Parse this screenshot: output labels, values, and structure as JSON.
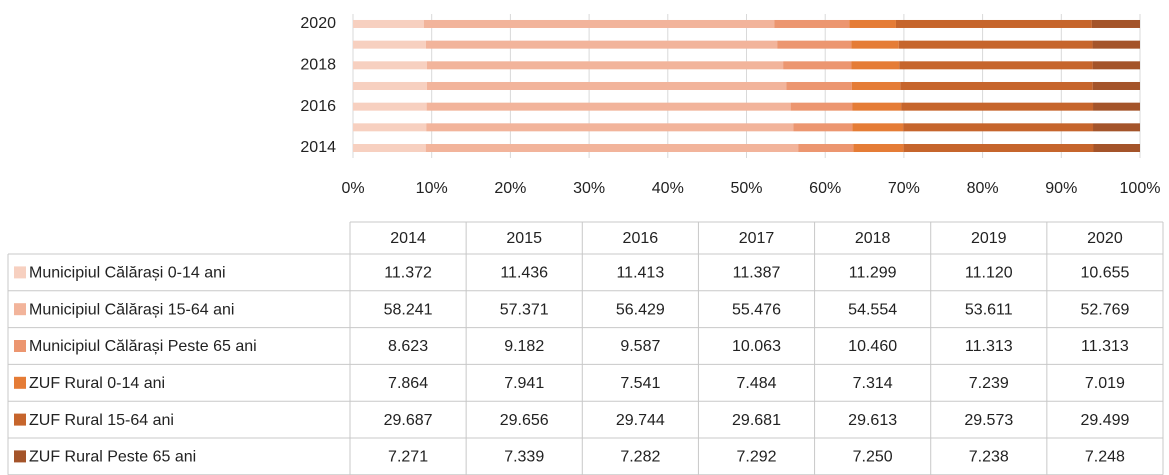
{
  "chart_data": {
    "type": "bar",
    "orientation": "horizontal",
    "stacking": "percent",
    "categories": [
      "2014",
      "2015",
      "2016",
      "2017",
      "2018",
      "2019",
      "2020"
    ],
    "series": [
      {
        "name": "Municipiul Călărași 0-14 ani",
        "color": "#f7d0c0",
        "values": [
          11372,
          11436,
          11413,
          11387,
          11299,
          11120,
          10655
        ],
        "value_labels": [
          "11.372",
          "11.436",
          "11.413",
          "11.387",
          "11.299",
          "11.120",
          "10.655"
        ]
      },
      {
        "name": "Municipiul Călărași 15-64 ani",
        "color": "#f2b49b",
        "values": [
          58241,
          57371,
          56429,
          55476,
          54554,
          53611,
          52769
        ],
        "value_labels": [
          "58.241",
          "57.371",
          "56.429",
          "55.476",
          "54.554",
          "53.611",
          "52.769"
        ]
      },
      {
        "name": "Municipiul Călărași Peste 65 ani",
        "color": "#ec9670",
        "values": [
          8623,
          9182,
          9587,
          10063,
          10460,
          11313,
          11313
        ],
        "value_labels": [
          "8.623",
          "9.182",
          "9.587",
          "10.063",
          "10.460",
          "11.313",
          "11.313"
        ]
      },
      {
        "name": "ZUF Rural 0-14 ani",
        "color": "#e57c36",
        "values": [
          7864,
          7941,
          7541,
          7484,
          7314,
          7239,
          7019
        ],
        "value_labels": [
          "7.864",
          "7.941",
          "7.541",
          "7.484",
          "7.314",
          "7.239",
          "7.019"
        ]
      },
      {
        "name": "ZUF Rural 15-64 ani",
        "color": "#c6652c",
        "values": [
          29687,
          29656,
          29744,
          29681,
          29613,
          29573,
          29499
        ],
        "value_labels": [
          "29.687",
          "29.656",
          "29.744",
          "29.681",
          "29.613",
          "29.573",
          "29.499"
        ]
      },
      {
        "name": "ZUF Rural Peste 65 ani",
        "color": "#a4542a",
        "values": [
          7271,
          7339,
          7282,
          7292,
          7250,
          7238,
          7248
        ],
        "value_labels": [
          "7.271",
          "7.339",
          "7.282",
          "7.292",
          "7.250",
          "7.238",
          "7.248"
        ]
      }
    ],
    "xlim": [
      0,
      100
    ],
    "xticks": [
      {
        "value": 0,
        "label": "0%"
      },
      {
        "value": 10,
        "label": "10%"
      },
      {
        "value": 20,
        "label": "20%"
      },
      {
        "value": 30,
        "label": "30%"
      },
      {
        "value": 40,
        "label": "40%"
      },
      {
        "value": 50,
        "label": "50%"
      },
      {
        "value": 60,
        "label": "60%"
      },
      {
        "value": 70,
        "label": "70%"
      },
      {
        "value": 80,
        "label": "80%"
      },
      {
        "value": 90,
        "label": "90%"
      },
      {
        "value": 100,
        "label": "100%"
      }
    ],
    "grid": true
  }
}
